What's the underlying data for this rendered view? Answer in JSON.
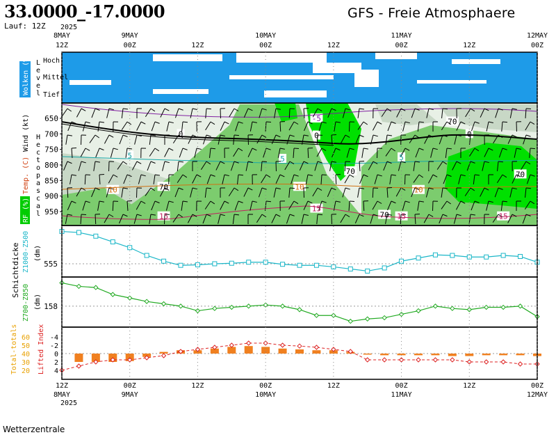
{
  "header": {
    "coords": "33.0000_-17.0000",
    "model_title": "GFS - Freie Atmosphaere",
    "run": "Lauf: 12Z",
    "footer": "Wetterzentrale"
  },
  "time_axis": {
    "year": "2025",
    "ticks": [
      {
        "day": "8MAY",
        "hour": "12Z"
      },
      {
        "day": "9MAY",
        "hour": "00Z"
      },
      {
        "day": "",
        "hour": "12Z"
      },
      {
        "day": "10MAY",
        "hour": "00Z"
      },
      {
        "day": "",
        "hour": "12Z"
      },
      {
        "day": "11MAY",
        "hour": "00Z"
      },
      {
        "day": "",
        "hour": "12Z"
      },
      {
        "day": "12MAY",
        "hour": "00Z"
      }
    ]
  },
  "panels": {
    "clouds": {
      "ylabel": "Wolken (%)",
      "level_label": "Level",
      "levels": [
        "Hoch",
        "Mittel",
        "Tief"
      ],
      "cloud_color": "#1e9be8"
    },
    "atmos": {
      "ylabel_rh": "RF (%)",
      "ylabel_temp": "Temp. (C)",
      "ylabel_wind": "Wind (kt)",
      "ylabel_hpa": "Hectopascal",
      "pressure_ticks": [
        "650",
        "700",
        "750",
        "800",
        "850",
        "900",
        "950"
      ],
      "rh_colors": {
        "low": "#e8f0e6",
        "mid": "#c8d8c6",
        "moist": "#7ccc6e",
        "saturated": "#00e000"
      }
    },
    "thickness": {
      "ylabel": "Schichtdicke",
      "upper": {
        "label": "Z1000-Z500",
        "unit": "(dm)",
        "tick": "555",
        "color": "#1ab6c8"
      },
      "lower": {
        "label": "Z700-Z850",
        "unit": "(dm)",
        "tick": "158",
        "color": "#22aa22"
      }
    },
    "index": {
      "left_label": "Total-totals",
      "left_ticks": [
        "60",
        "50",
        "40",
        "30",
        "20"
      ],
      "left_color": "#e8a000",
      "right_label": "Lifted Index",
      "right_ticks": [
        "-4",
        "-2",
        "0",
        "2",
        "4"
      ],
      "right_color": "#dd2222",
      "bar_color": "#f08020"
    }
  },
  "chart_data": {
    "type": "line",
    "x": [
      "8MAY 12Z",
      "8MAY 15Z",
      "8MAY 18Z",
      "8MAY 21Z",
      "9MAY 00Z",
      "9MAY 03Z",
      "9MAY 06Z",
      "9MAY 09Z",
      "9MAY 12Z",
      "9MAY 15Z",
      "9MAY 18Z",
      "9MAY 21Z",
      "10MAY 00Z",
      "10MAY 03Z",
      "10MAY 06Z",
      "10MAY 09Z",
      "10MAY 12Z",
      "10MAY 15Z",
      "10MAY 18Z",
      "10MAY 21Z",
      "11MAY 00Z",
      "11MAY 03Z",
      "11MAY 06Z",
      "11MAY 09Z",
      "11MAY 12Z",
      "11MAY 15Z",
      "11MAY 18Z",
      "11MAY 21Z",
      "12MAY 00Z"
    ],
    "series": [
      {
        "name": "Z1000-Z500",
        "values": [
          561.2,
          561.0,
          560.3,
          559.2,
          558.1,
          556.6,
          555.5,
          554.7,
          554.8,
          555.0,
          555.1,
          555.3,
          555.3,
          554.9,
          554.7,
          554.7,
          554.4,
          554.0,
          553.6,
          554.2,
          555.5,
          556.1,
          556.7,
          556.6,
          556.3,
          556.3,
          556.6,
          556.4,
          555.3
        ]
      },
      {
        "name": "Z700-Z850",
        "values": [
          160.0,
          159.7,
          159.6,
          159.0,
          158.7,
          158.4,
          158.2,
          158.0,
          157.6,
          157.8,
          157.9,
          158.0,
          158.1,
          158.0,
          157.7,
          157.2,
          157.2,
          156.7,
          156.9,
          157.0,
          157.3,
          157.6,
          158.0,
          157.8,
          157.7,
          157.9,
          157.9,
          158.0,
          157.1
        ]
      },
      {
        "name": "Total-totals",
        "values": [
          30,
          30,
          30,
          30,
          31,
          36,
          42,
          44,
          44,
          46,
          48,
          49,
          48,
          46,
          45,
          44,
          44,
          42,
          40,
          38,
          38,
          38,
          38,
          37,
          37,
          38,
          38,
          38,
          37
        ]
      },
      {
        "name": "Lifted Index",
        "values": [
          4,
          3,
          2,
          1.5,
          1.5,
          1,
          0.5,
          -0.5,
          -1,
          -1.5,
          -2,
          -2.5,
          -2.5,
          -2,
          -1.8,
          -1.5,
          -1,
          -0.5,
          1.5,
          1.5,
          1.5,
          1.5,
          1.5,
          1.5,
          2,
          2,
          2,
          2.5,
          2.5
        ]
      }
    ],
    "contour_labels": [
      {
        "value": "70",
        "color": "#000000",
        "time": "11MAY 09Z",
        "hpa": 660
      },
      {
        "value": "70",
        "color": "#000000",
        "time": "10MAY 15Z",
        "hpa": 820
      },
      {
        "value": "70",
        "color": "#000000",
        "time": "9MAY 06Z",
        "hpa": 870
      },
      {
        "value": "70",
        "color": "#000000",
        "time": "11MAY 21Z",
        "hpa": 830
      },
      {
        "value": "70",
        "color": "#000000",
        "time": "10MAY 21Z",
        "hpa": 960
      },
      {
        "value": "5",
        "color": "#18a8a8",
        "time": "9MAY 00Z",
        "hpa": 770
      },
      {
        "value": "5",
        "color": "#18a8a8",
        "time": "10MAY 03Z",
        "hpa": 780
      },
      {
        "value": "5",
        "color": "#18a8a8",
        "time": "11MAY 00Z",
        "hpa": 775
      },
      {
        "value": "10",
        "color": "#d07010",
        "time": "8MAY 21Z",
        "hpa": 880
      },
      {
        "value": "10",
        "color": "#d07010",
        "time": "10MAY 06Z",
        "hpa": 870
      },
      {
        "value": "10",
        "color": "#d07010",
        "time": "11MAY 03Z",
        "hpa": 880
      },
      {
        "value": "15",
        "color": "#c02060",
        "time": "9MAY 06Z",
        "hpa": 965
      },
      {
        "value": "15",
        "color": "#c02060",
        "time": "10MAY 09Z",
        "hpa": 940
      },
      {
        "value": "15",
        "color": "#c02060",
        "time": "11MAY 00Z",
        "hpa": 965
      },
      {
        "value": "15",
        "color": "#c02060",
        "time": "11MAY 18Z",
        "hpa": 965
      },
      {
        "value": "-5",
        "color": "#8020a0",
        "time": "10MAY 09Z",
        "hpa": 650
      },
      {
        "value": "0",
        "color": "#000000",
        "time": "9MAY 09Z",
        "hpa": 700
      },
      {
        "value": "0",
        "color": "#000000",
        "time": "10MAY 09Z",
        "hpa": 705
      },
      {
        "value": "0",
        "color": "#000000",
        "time": "11MAY 12Z",
        "hpa": 700
      }
    ]
  }
}
